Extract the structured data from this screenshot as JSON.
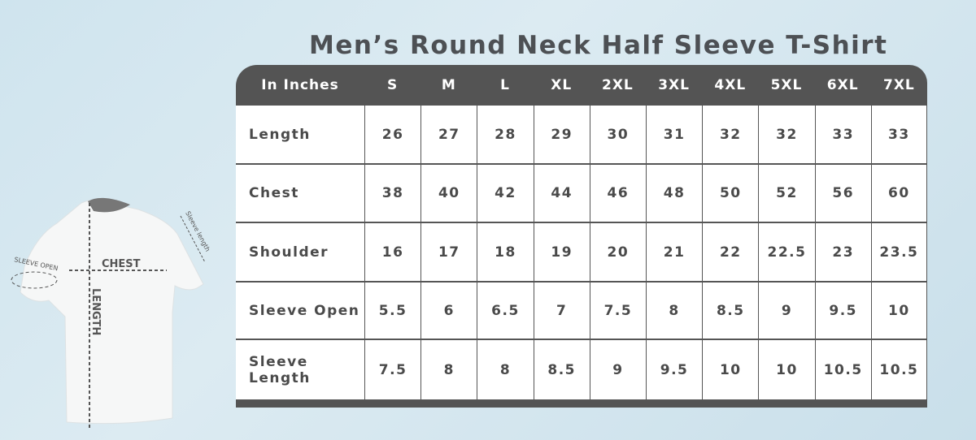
{
  "title": "Men’s Round Neck Half Sleeve T-Shirt",
  "table": {
    "unit_header": "In Inches",
    "sizes": [
      "S",
      "M",
      "L",
      "XL",
      "2XL",
      "3XL",
      "4XL",
      "5XL",
      "6XL",
      "7XL"
    ],
    "rows": [
      {
        "label": "Length",
        "values": [
          "26",
          "27",
          "28",
          "29",
          "30",
          "31",
          "32",
          "32",
          "33",
          "33"
        ]
      },
      {
        "label": "Chest",
        "values": [
          "38",
          "40",
          "42",
          "44",
          "46",
          "48",
          "50",
          "52",
          "56",
          "60"
        ]
      },
      {
        "label": "Shoulder",
        "values": [
          "16",
          "17",
          "18",
          "19",
          "20",
          "21",
          "22",
          "22.5",
          "23",
          "23.5"
        ]
      },
      {
        "label": "Sleeve Open",
        "values": [
          "5.5",
          "6",
          "6.5",
          "7",
          "7.5",
          "8",
          "8.5",
          "9",
          "9.5",
          "10"
        ]
      },
      {
        "label": "Sleeve Length",
        "values": [
          "7.5",
          "8",
          "8",
          "8.5",
          "9",
          "9.5",
          "10",
          "10",
          "10.5",
          "10.5"
        ]
      }
    ]
  },
  "diagram": {
    "chest": "CHEST",
    "length": "LENGTH",
    "sleeve_open": "SLEEVE OPEN",
    "sleeve_length": "Sleeve length"
  }
}
